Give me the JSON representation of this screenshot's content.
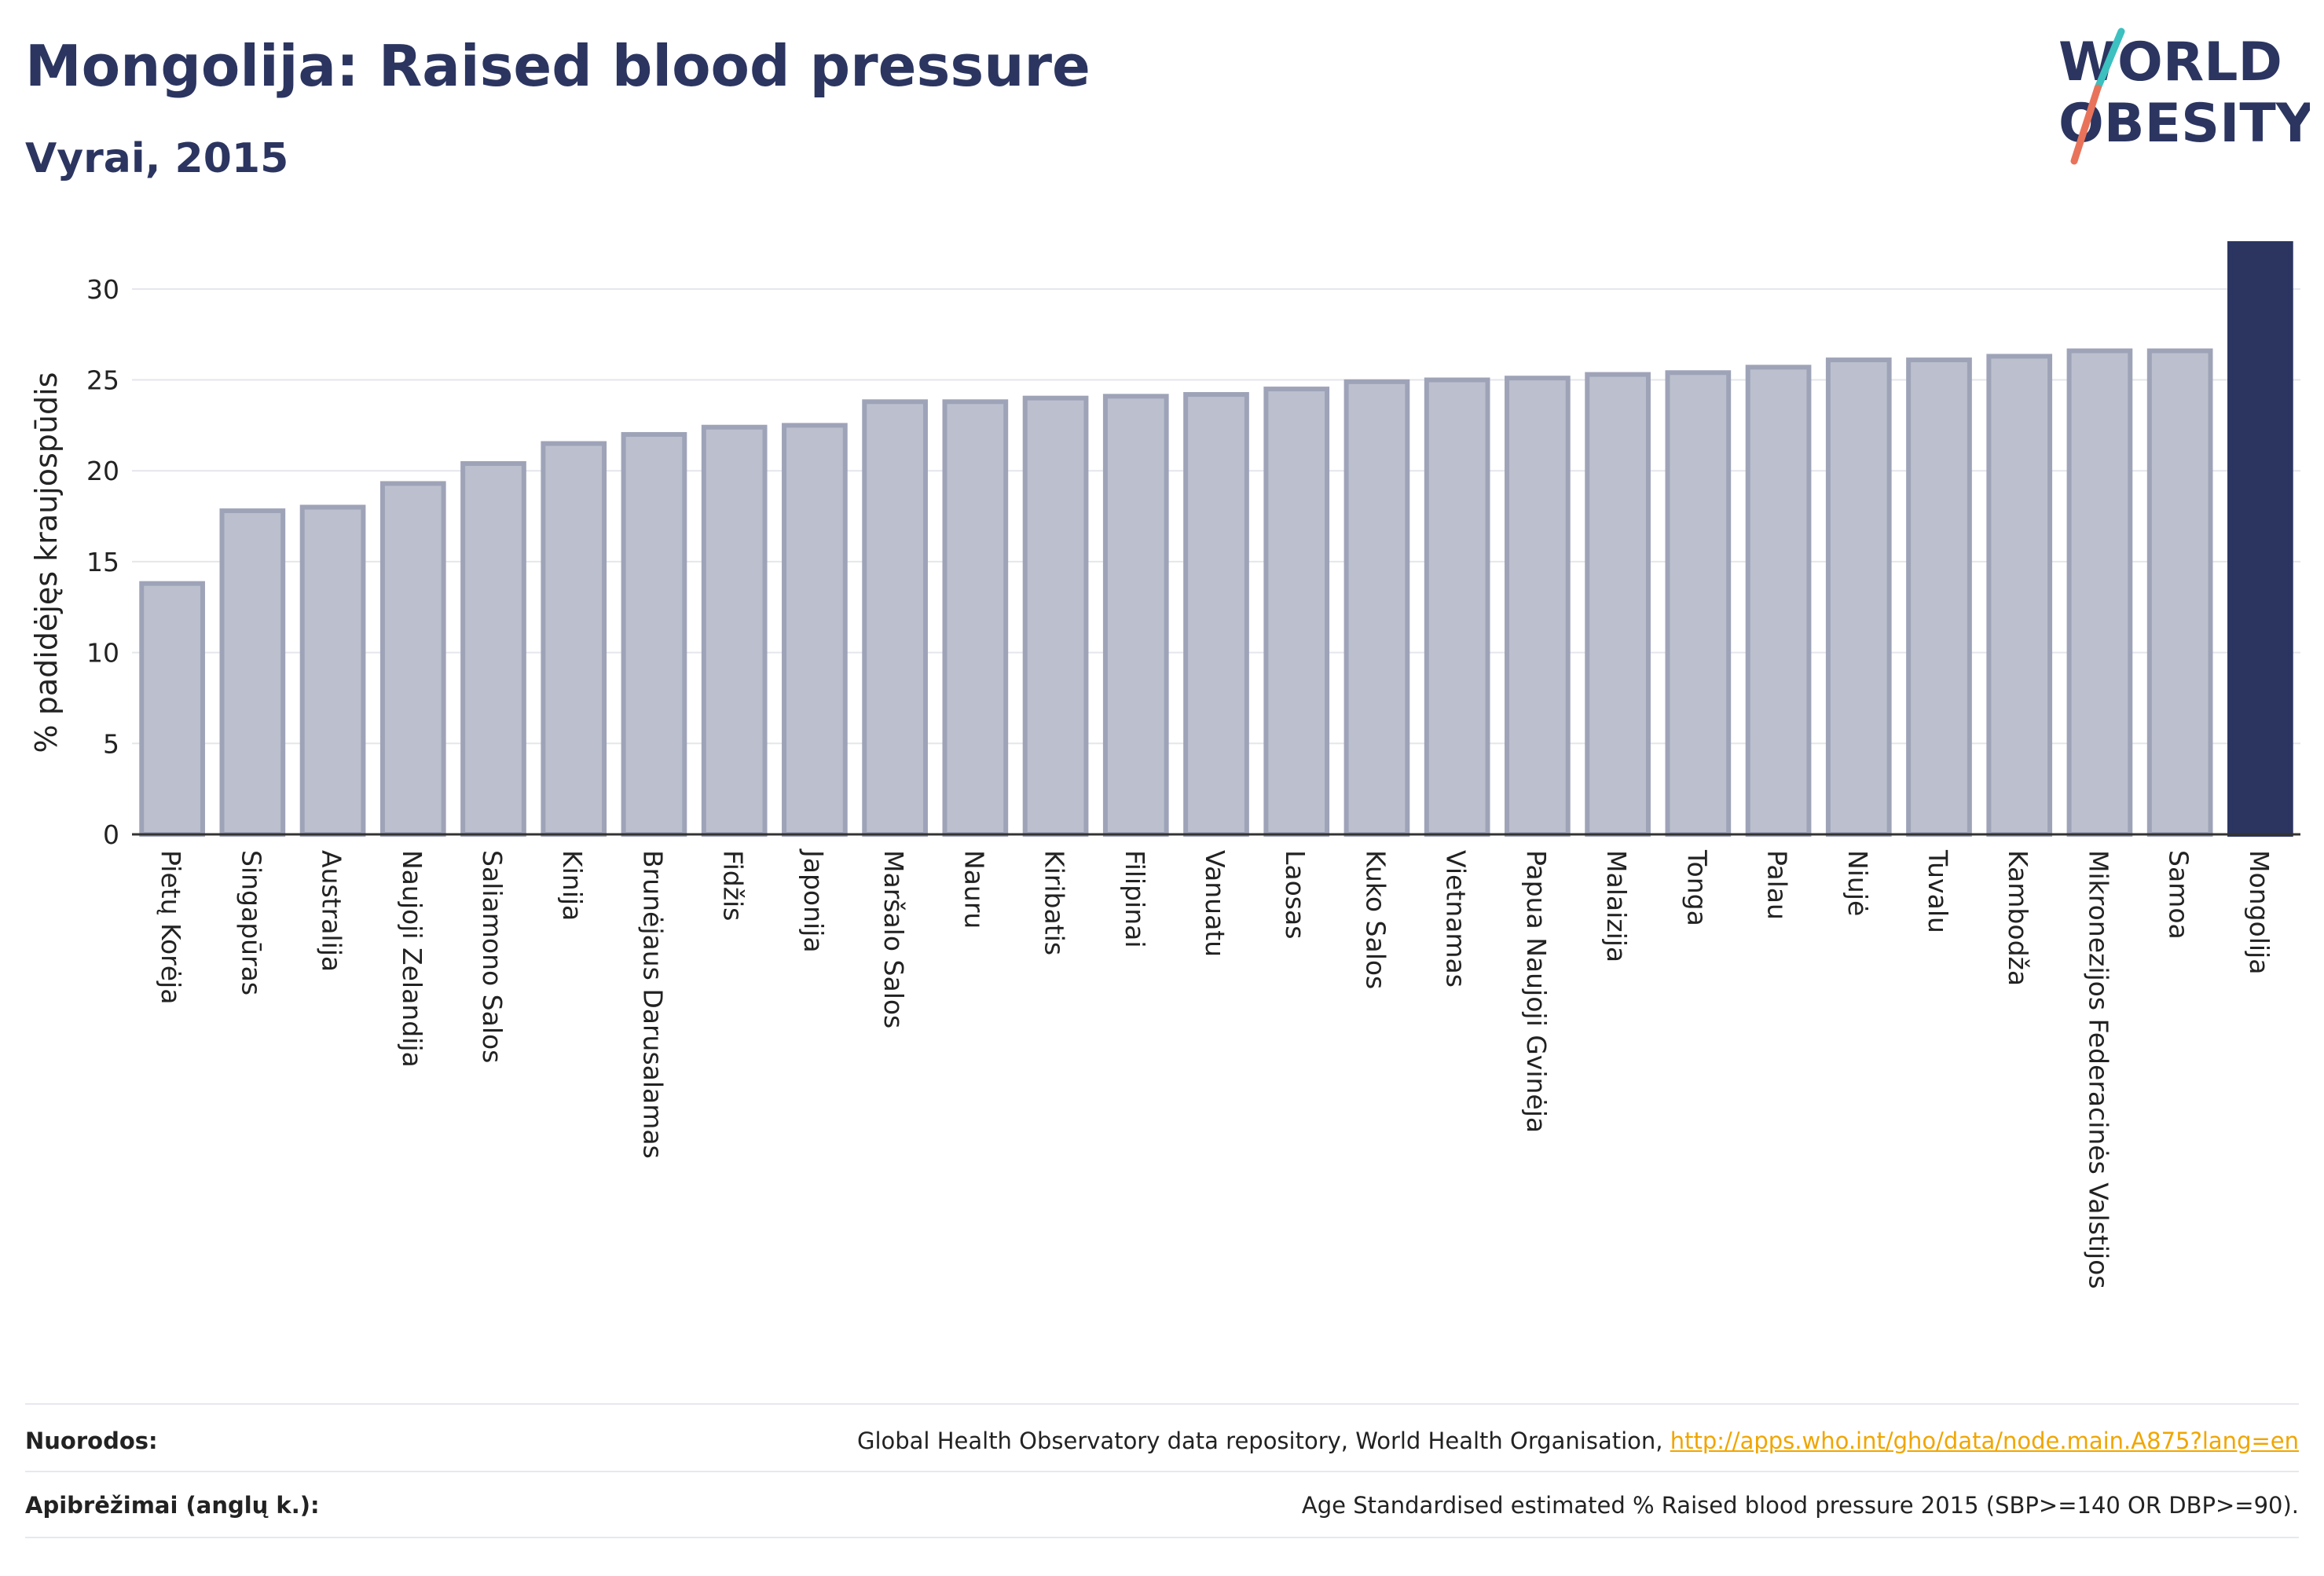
{
  "header": {
    "title": "Mongolija: Raised blood pressure",
    "subtitle": "Vyrai, 2015"
  },
  "logo": {
    "line1": "WORLD",
    "line2": "OBESITY",
    "colors": [
      "#2b3560",
      "#3cc0c0",
      "#e8735a"
    ]
  },
  "colors": {
    "bar_default": "#bcc0ce",
    "bar_border": "#9ea3b8",
    "bar_highlight": "#2b3560",
    "grid": "#e4e6ec",
    "axis": "#333333"
  },
  "chart_data": {
    "type": "bar",
    "title": "Mongolija: Raised blood pressure",
    "subtitle": "Vyrai, 2015",
    "xlabel": "",
    "ylabel": "% padidėjęs kraujospūdis",
    "ylim": [
      0,
      32.5
    ],
    "yticks": [
      0,
      5,
      10,
      15,
      20,
      25,
      30
    ],
    "grid": true,
    "highlight": "Mongolija",
    "categories": [
      "Pietų Korėja",
      "Singapūras",
      "Australija",
      "Naujoji Zelandija",
      "Saliamono Salos",
      "Kinija",
      "Brunėjaus Darusalamas",
      "Fidžis",
      "Japonija",
      "Maršalo Salos",
      "Nauru",
      "Kiribatis",
      "Filipinai",
      "Vanuatu",
      "Laosas",
      "Kuko Salos",
      "Vietnamas",
      "Papua Naujoji Gvinėja",
      "Malaizija",
      "Tonga",
      "Palau",
      "Niujė",
      "Tuvalu",
      "Kambodža",
      "Mikronezijos Federacinės Valstijos",
      "Samoa",
      "Mongolija"
    ],
    "values": [
      13.8,
      17.8,
      18.0,
      19.3,
      20.4,
      21.5,
      22.0,
      22.4,
      22.5,
      23.8,
      23.8,
      24.0,
      24.1,
      24.2,
      24.5,
      24.9,
      25.0,
      25.1,
      25.3,
      25.4,
      25.7,
      26.1,
      26.1,
      26.3,
      26.6,
      26.6,
      32.5
    ]
  },
  "footer": {
    "references_label": "Nuorodos:",
    "references_text": "Global Health Observatory data repository, World Health Organisation, ",
    "references_link": "http://apps.who.int/gho/data/node.main.A875?lang=en",
    "definitions_label": "Apibrėžimai (anglų k.):",
    "definitions_text": "Age Standardised estimated % Raised blood pressure 2015 (SBP>=140 OR DBP>=90)."
  }
}
